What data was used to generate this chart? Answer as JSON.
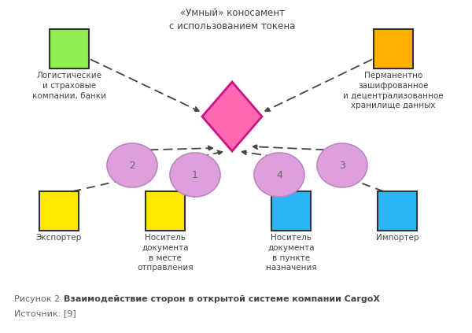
{
  "title": "«Умный» коносамент\nс использованием токена",
  "caption_normal": "Рисунок 2. ",
  "caption_bold": "Взаимодействие сторон в открытой системе компании CargoX",
  "caption_source": "Источник: [9]",
  "background_color": "#FFFFFF",
  "diamond_color": "#FF69B4",
  "diamond_edge": "#CC1480",
  "circle_color": "#DDA0DD",
  "circle_edge": "#BB88BB",
  "text_color": "#444444",
  "line_color": "#444444"
}
